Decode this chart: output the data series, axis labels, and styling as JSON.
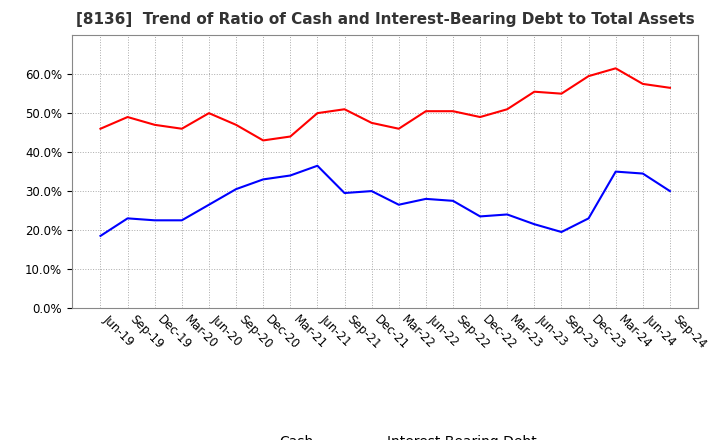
{
  "title": "[8136]  Trend of Ratio of Cash and Interest-Bearing Debt to Total Assets",
  "x_labels": [
    "Jun-19",
    "Sep-19",
    "Dec-19",
    "Mar-20",
    "Jun-20",
    "Sep-20",
    "Dec-20",
    "Mar-21",
    "Jun-21",
    "Sep-21",
    "Dec-21",
    "Mar-22",
    "Jun-22",
    "Sep-22",
    "Dec-22",
    "Mar-23",
    "Jun-23",
    "Sep-23",
    "Dec-23",
    "Mar-24",
    "Jun-24",
    "Sep-24"
  ],
  "cash": [
    0.46,
    0.49,
    0.47,
    0.46,
    0.5,
    0.47,
    0.43,
    0.44,
    0.5,
    0.51,
    0.475,
    0.46,
    0.505,
    0.505,
    0.49,
    0.51,
    0.555,
    0.55,
    0.595,
    0.615,
    0.575,
    0.565
  ],
  "interest_bearing_debt": [
    0.185,
    0.23,
    0.225,
    0.225,
    0.265,
    0.305,
    0.33,
    0.34,
    0.365,
    0.295,
    0.3,
    0.265,
    0.28,
    0.275,
    0.235,
    0.24,
    0.215,
    0.195,
    0.23,
    0.35,
    0.345,
    0.3
  ],
  "cash_color": "#ff0000",
  "debt_color": "#0000ff",
  "background_color": "#ffffff",
  "grid_color": "#aaaaaa",
  "ylim": [
    0.0,
    0.7
  ],
  "yticks": [
    0.0,
    0.1,
    0.2,
    0.3,
    0.4,
    0.5,
    0.6
  ],
  "legend_labels": [
    "Cash",
    "Interest-Bearing Debt"
  ],
  "title_fontsize": 11,
  "axis_fontsize": 8.5,
  "legend_fontsize": 10
}
